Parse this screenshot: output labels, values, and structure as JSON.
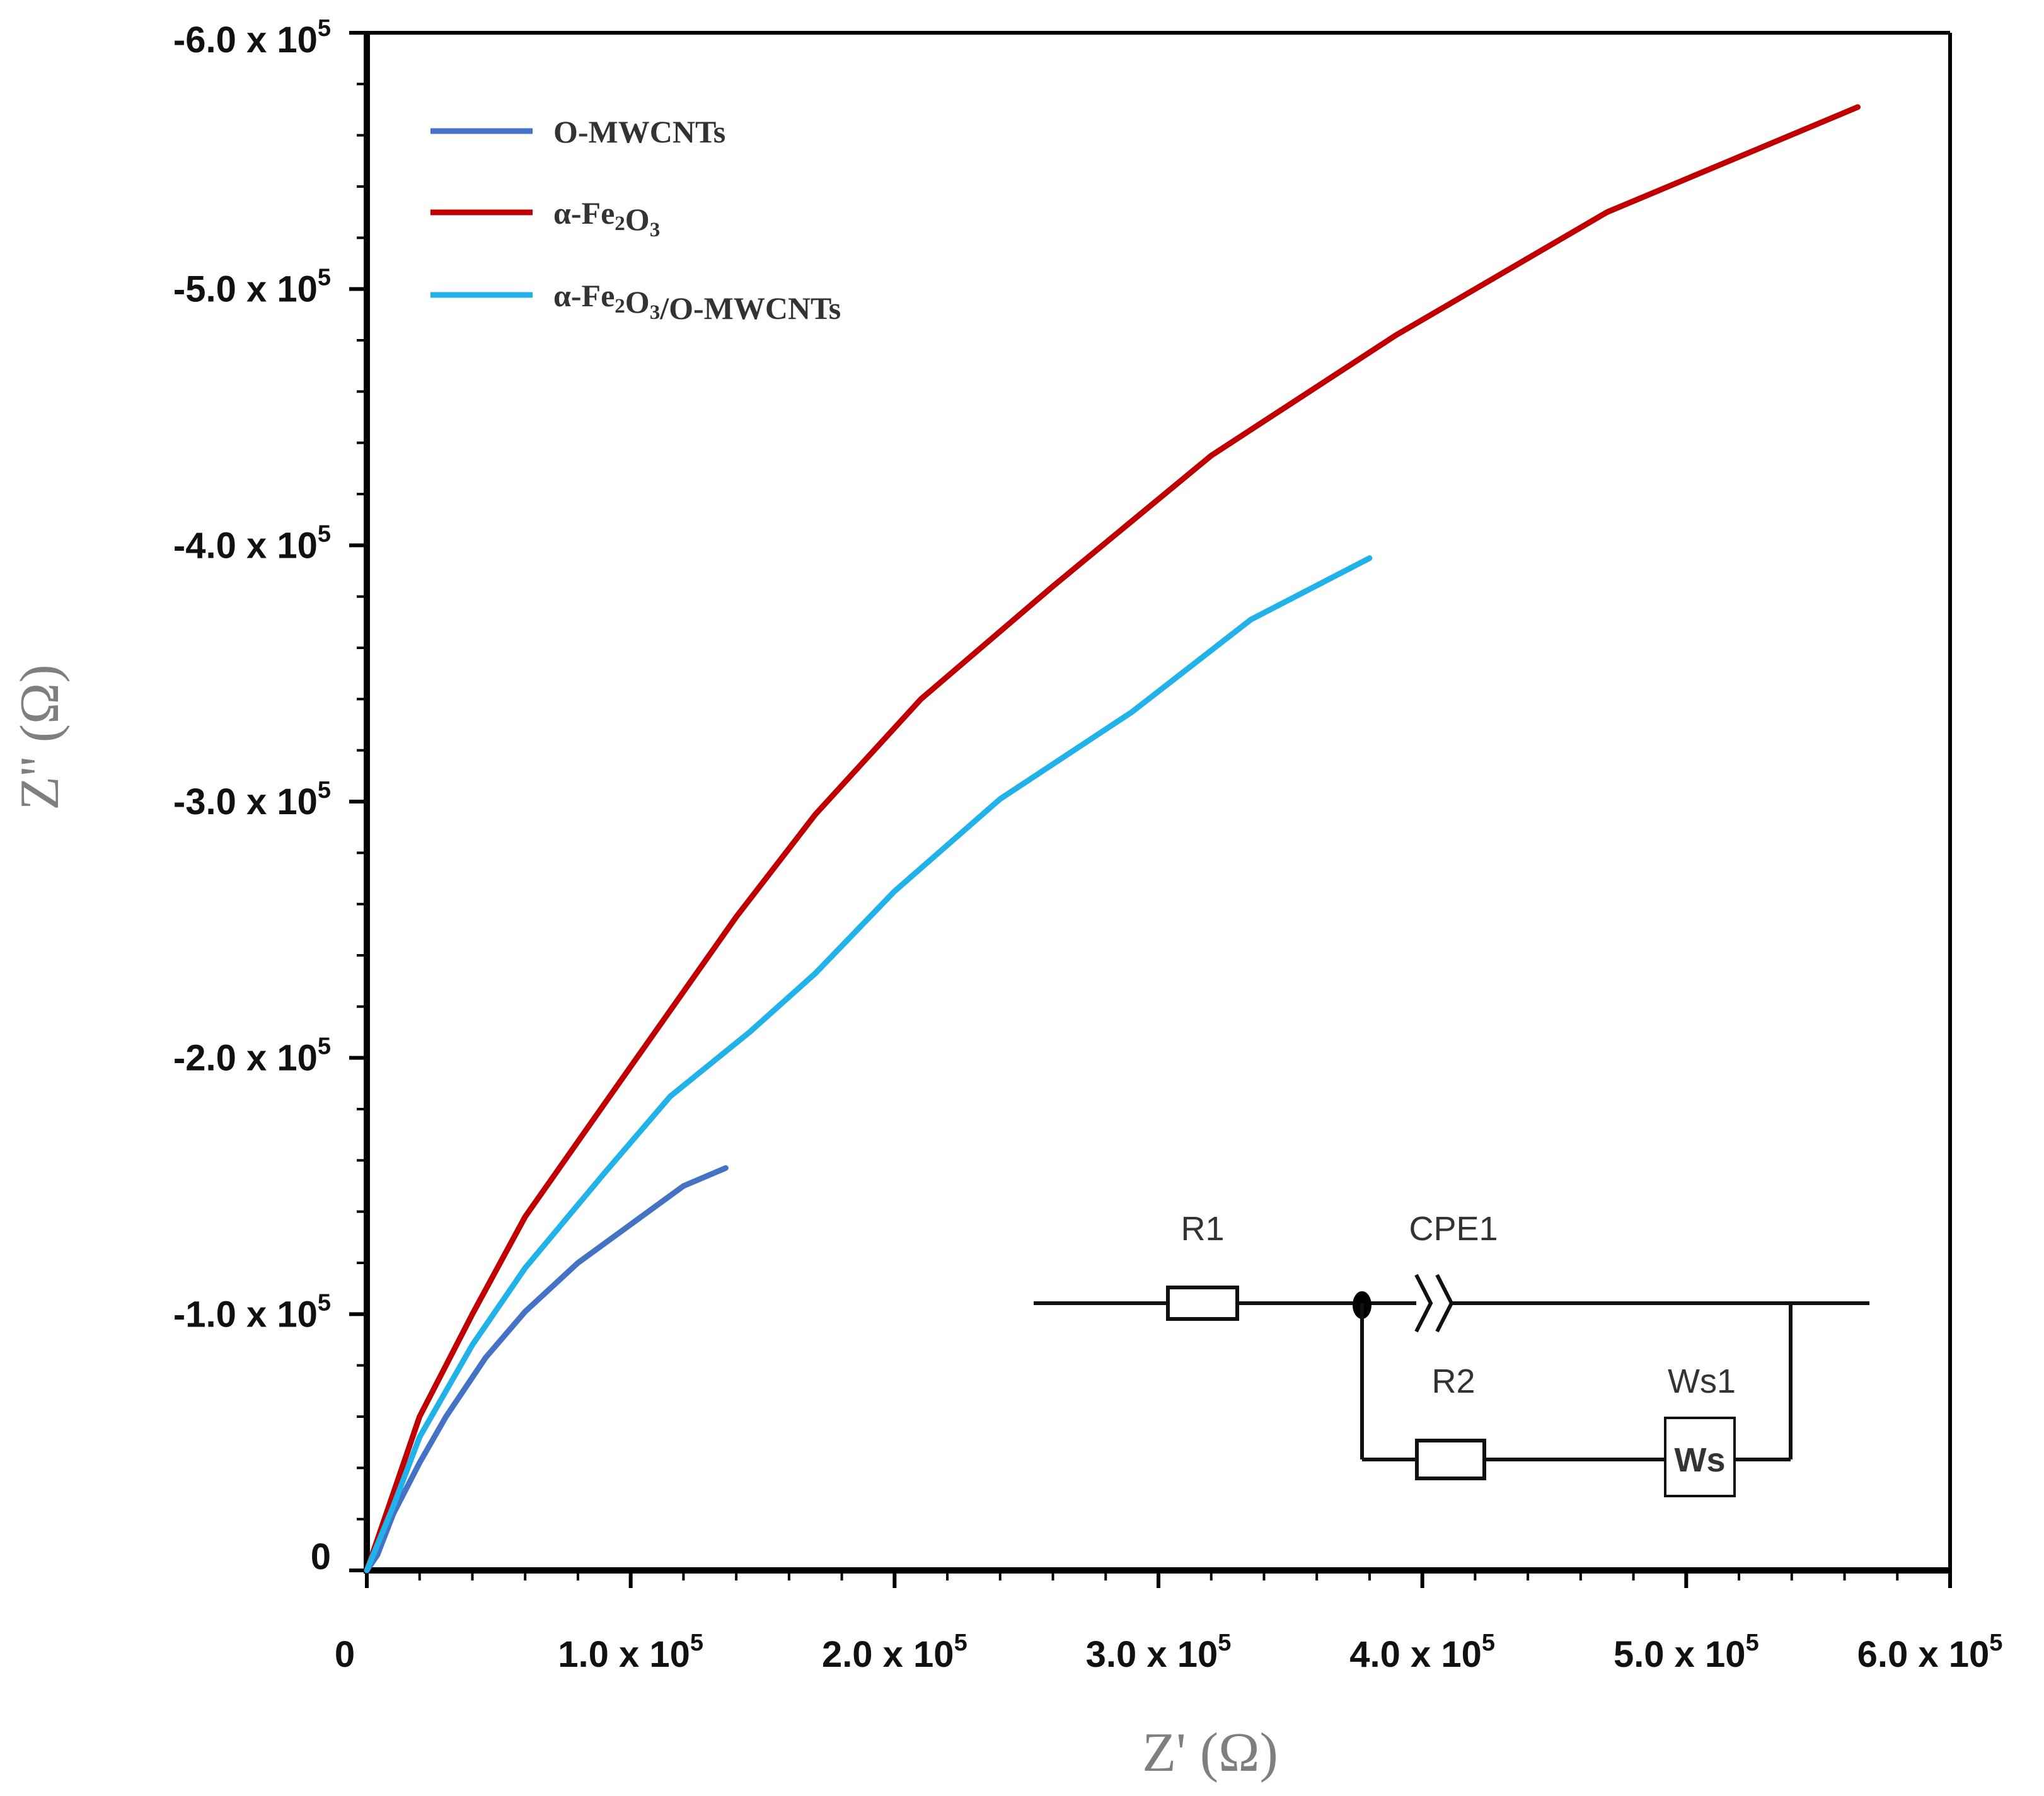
{
  "chart_data": {
    "type": "line",
    "title": "",
    "xlabel": "Z' (Ω)",
    "ylabel": "Z'' (Ω)",
    "xlim": [
      0,
      600000
    ],
    "ylim": [
      0,
      -600000
    ],
    "grid": false,
    "legend_position": "top-left",
    "x_ticks": [
      {
        "value": 0,
        "label": "0",
        "sup": ""
      },
      {
        "value": 100000,
        "label": "1.0 x 10",
        "sup": "5"
      },
      {
        "value": 200000,
        "label": "2.0 x 10",
        "sup": "5"
      },
      {
        "value": 300000,
        "label": "3.0 x 10",
        "sup": "5"
      },
      {
        "value": 400000,
        "label": "4.0 x 10",
        "sup": "5"
      },
      {
        "value": 500000,
        "label": "5.0 x 10",
        "sup": "5"
      },
      {
        "value": 600000,
        "label": "6.0 x 10",
        "sup": "5"
      }
    ],
    "y_ticks": [
      {
        "value": 0,
        "label": "0",
        "sup": ""
      },
      {
        "value": -100000,
        "label": "-1.0 x 10",
        "sup": "5"
      },
      {
        "value": -200000,
        "label": "-2.0 x 10",
        "sup": "5"
      },
      {
        "value": -300000,
        "label": "-3.0 x 10",
        "sup": "5"
      },
      {
        "value": -400000,
        "label": "-4.0 x 10",
        "sup": "5"
      },
      {
        "value": -500000,
        "label": "-5.0 x 10",
        "sup": "5"
      },
      {
        "value": -600000,
        "label": "-6.0 x 10",
        "sup": "5"
      }
    ],
    "series": [
      {
        "name": "O-MWCNTs",
        "color": "#4472c4",
        "legend_parts": [
          {
            "t": "O-MWCNTs",
            "sub": false
          }
        ],
        "x": [
          0,
          4000,
          10000,
          20000,
          30000,
          45000,
          60000,
          80000,
          100000,
          120000,
          136000
        ],
        "y": [
          0,
          -6000,
          -22000,
          -42000,
          -60000,
          -83000,
          -101000,
          -120000,
          -135000,
          -150000,
          -157000
        ]
      },
      {
        "name": "α-Fe2O3",
        "color": "#c00000",
        "legend_parts": [
          {
            "t": "α-Fe",
            "sub": false
          },
          {
            "t": "2",
            "sub": true
          },
          {
            "t": "O",
            "sub": false
          },
          {
            "t": "3",
            "sub": true
          }
        ],
        "x": [
          0,
          10000,
          20000,
          40000,
          60000,
          90000,
          140000,
          170000,
          210000,
          260000,
          320000,
          390000,
          470000,
          565000
        ],
        "y": [
          0,
          -30000,
          -60000,
          -100000,
          -138000,
          -182000,
          -255000,
          -295000,
          -340000,
          -384000,
          -435000,
          -482000,
          -530000,
          -571000
        ]
      },
      {
        "name": "α-Fe2O3/O-MWCNTs",
        "color": "#20b2e8",
        "legend_parts": [
          {
            "t": "α-Fe",
            "sub": false
          },
          {
            "t": "2",
            "sub": true
          },
          {
            "t": "O",
            "sub": false
          },
          {
            "t": "3",
            "sub": true
          },
          {
            "t": "/O-MWCNTs",
            "sub": false
          }
        ],
        "x": [
          0,
          10000,
          20000,
          40000,
          60000,
          90000,
          115000,
          145000,
          170000,
          200000,
          240000,
          290000,
          335000,
          380000
        ],
        "y": [
          0,
          -25000,
          -52000,
          -88000,
          -118000,
          -155000,
          -185000,
          -210000,
          -233000,
          -265000,
          -301000,
          -335000,
          -371000,
          -395000
        ]
      }
    ],
    "inset_circuit": {
      "labels": [
        "R1",
        "CPE1",
        "R2",
        "Ws1"
      ],
      "box_text": "Ws"
    }
  }
}
